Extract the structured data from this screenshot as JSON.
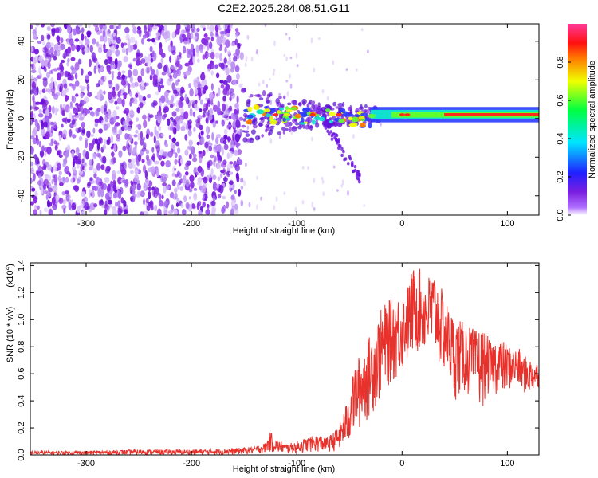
{
  "title": "C2E2.2025.284.08.51.G11",
  "chart_data": [
    {
      "type": "heatmap",
      "name": "spectrogram",
      "title": "C2E2.2025.284.08.51.G11",
      "xlabel": "Height of straight line (km)",
      "ylabel": "Frequency (Hz)",
      "xlim": [
        -353,
        130
      ],
      "ylim": [
        -50,
        49
      ],
      "xticks": [
        -300,
        -200,
        -100,
        0,
        100
      ],
      "xtick_labels": [
        "-300",
        "-200",
        "-100",
        "0",
        "100"
      ],
      "yticks": [
        -40,
        -20,
        0,
        20,
        40
      ],
      "ytick_labels": [
        "-40",
        "-20",
        "0",
        "20",
        "40"
      ],
      "colorbar": {
        "label": "Normalized spectral amplitude",
        "range": [
          0.0,
          1.0
        ],
        "ticks": [
          0.0,
          0.2,
          0.4,
          0.6,
          0.8
        ],
        "tick_labels": [
          "0.0",
          "0.2",
          "0.4",
          "0.6",
          "0.8"
        ],
        "colormap": "rainbow (magenta-blue-cyan-green-yellow-red)"
      },
      "features": {
        "noise_band_x_range": [
          -353,
          -152
        ],
        "signal_start_x": -152,
        "signal_center_frequency_hz": 2
      },
      "colors": {
        "noise": "#7b1fe0",
        "signal_low": "#2b3cff",
        "signal_mid": "#10e0d0",
        "signal_high": "#ff2a1a"
      }
    },
    {
      "type": "line",
      "name": "snr",
      "xlabel": "Height of straight line (km)",
      "ylabel": "SNR (10 * v/v)",
      "y_scale_label": "(x10^4)",
      "y_scale_base": "(x10",
      "y_scale_exp": "4",
      "xlim": [
        -353,
        130
      ],
      "ylim": [
        0.0,
        1.42
      ],
      "xticks": [
        -300,
        -200,
        -100,
        0,
        100
      ],
      "xtick_labels": [
        "-300",
        "-200",
        "-100",
        "0",
        "100"
      ],
      "yticks": [
        0.0,
        0.2,
        0.4,
        0.6,
        0.8,
        1.0,
        1.2,
        1.4
      ],
      "ytick_labels": [
        "0.0",
        "0.2",
        "0.4",
        "0.6",
        "0.8",
        "1.0",
        "1.2",
        "1.4"
      ],
      "line_color": "#e8312b",
      "x": [
        -353,
        -300,
        -250,
        -200,
        -160,
        -140,
        -130,
        -125,
        -120,
        -110,
        -100,
        -90,
        -80,
        -70,
        -60,
        -55,
        -50,
        -45,
        -40,
        -35,
        -30,
        -25,
        -20,
        -15,
        -10,
        -5,
        0,
        5,
        10,
        15,
        20,
        25,
        30,
        35,
        40,
        45,
        50,
        55,
        60,
        65,
        70,
        75,
        80,
        85,
        90,
        95,
        100,
        105,
        110,
        115,
        120,
        125,
        130
      ],
      "envelope_high": [
        0.03,
        0.03,
        0.04,
        0.04,
        0.05,
        0.06,
        0.09,
        0.17,
        0.12,
        0.08,
        0.1,
        0.13,
        0.15,
        0.13,
        0.21,
        0.33,
        0.46,
        0.67,
        0.75,
        0.82,
        0.9,
        0.97,
        1.08,
        1.13,
        1.16,
        1.18,
        1.2,
        1.26,
        1.38,
        1.42,
        1.3,
        1.33,
        1.37,
        1.28,
        1.18,
        1.08,
        1.02,
        1.0,
        0.97,
        0.95,
        0.92,
        0.95,
        0.9,
        0.82,
        0.88,
        0.85,
        0.82,
        0.78,
        0.8,
        0.74,
        0.72,
        0.7,
        0.68
      ],
      "envelope_low": [
        0.0,
        0.0,
        0.0,
        0.0,
        0.0,
        0.01,
        0.01,
        0.02,
        0.01,
        0.01,
        0.01,
        0.02,
        0.02,
        0.02,
        0.03,
        0.05,
        0.08,
        0.14,
        0.18,
        0.22,
        0.28,
        0.33,
        0.4,
        0.48,
        0.52,
        0.55,
        0.6,
        0.66,
        0.7,
        0.74,
        0.73,
        0.72,
        0.7,
        0.64,
        0.58,
        0.52,
        0.4,
        0.42,
        0.45,
        0.4,
        0.38,
        0.32,
        0.42,
        0.46,
        0.44,
        0.42,
        0.45,
        0.5,
        0.47,
        0.45,
        0.44,
        0.46,
        0.5
      ]
    }
  ]
}
